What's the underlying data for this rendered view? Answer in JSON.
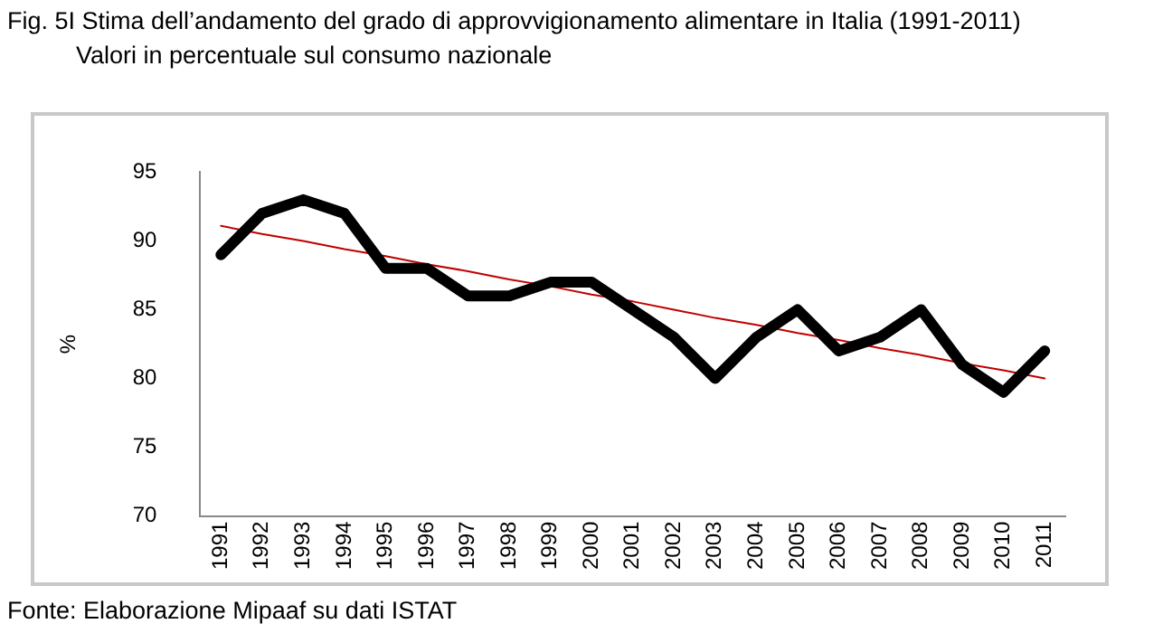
{
  "chart_data": {
    "type": "line",
    "title": "Fig. 5I Stima dell’andamento del grado di approvvigionamento alimentare in Italia (1991-2011)",
    "subtitle": "Valori in percentuale sul consumo nazionale",
    "ylabel": "%",
    "categories": [
      "1991",
      "1992",
      "1993",
      "1994",
      "1995",
      "1996",
      "1997",
      "1998",
      "1999",
      "2000",
      "2001",
      "2002",
      "2003",
      "2004",
      "2005",
      "2006",
      "2007",
      "2008",
      "2009",
      "2010",
      "2011"
    ],
    "series": [
      {
        "color": "#000000",
        "values": [
          89,
          92,
          93,
          92,
          88,
          88,
          86,
          86,
          87,
          87,
          85,
          83,
          80,
          83,
          85,
          82,
          83,
          85,
          81,
          79,
          82
        ]
      },
      {
        "type": "line",
        "color": "#c00000",
        "values": [
          91.1,
          90.5,
          90.0,
          89.4,
          88.9,
          88.3,
          87.8,
          87.2,
          86.7,
          86.1,
          85.6,
          85.0,
          84.4,
          83.9,
          83.3,
          82.8,
          82.2,
          81.7,
          81.1,
          80.6,
          80.0
        ]
      }
    ],
    "ylim": [
      70,
      95
    ],
    "yticks": [
      70,
      75,
      80,
      85,
      90,
      95
    ],
    "grid": false,
    "legend": false,
    "marker": "none",
    "annotations": [
      "Fonte: Elaborazione Mipaaf su dati ISTAT"
    ]
  }
}
